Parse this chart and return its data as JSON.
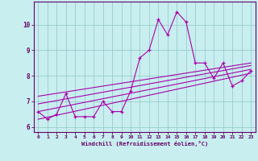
{
  "title": "",
  "xlabel": "Windchill (Refroidissement éolien,°C)",
  "ylabel": "",
  "bg_color": "#c8eef0",
  "line_color": "#aa00aa",
  "grid_color": "#99cccc",
  "axis_color": "#660066",
  "tick_color": "#660066",
  "label_color": "#660066",
  "xlim": [
    -0.5,
    23.5
  ],
  "ylim": [
    5.8,
    10.9
  ],
  "xticks": [
    0,
    1,
    2,
    3,
    4,
    5,
    6,
    7,
    8,
    9,
    10,
    11,
    12,
    13,
    14,
    15,
    16,
    17,
    18,
    19,
    20,
    21,
    22,
    23
  ],
  "yticks": [
    6,
    7,
    8,
    9,
    10
  ],
  "main_data_x": [
    0,
    1,
    2,
    3,
    4,
    5,
    6,
    7,
    8,
    9,
    10,
    11,
    12,
    13,
    14,
    15,
    16,
    17,
    18,
    19,
    20,
    21,
    22,
    23
  ],
  "main_data_y": [
    6.6,
    6.3,
    6.5,
    7.3,
    6.4,
    6.4,
    6.4,
    7.0,
    6.6,
    6.6,
    7.4,
    8.7,
    9.0,
    10.2,
    9.6,
    10.5,
    10.1,
    8.5,
    8.5,
    7.9,
    8.5,
    7.6,
    7.8,
    8.2
  ],
  "reg_lines": [
    {
      "x": [
        0,
        23
      ],
      "y": [
        6.3,
        8.1
      ]
    },
    {
      "x": [
        0,
        23
      ],
      "y": [
        6.6,
        8.25
      ]
    },
    {
      "x": [
        0,
        23
      ],
      "y": [
        6.9,
        8.4
      ]
    },
    {
      "x": [
        0,
        23
      ],
      "y": [
        7.2,
        8.5
      ]
    }
  ]
}
